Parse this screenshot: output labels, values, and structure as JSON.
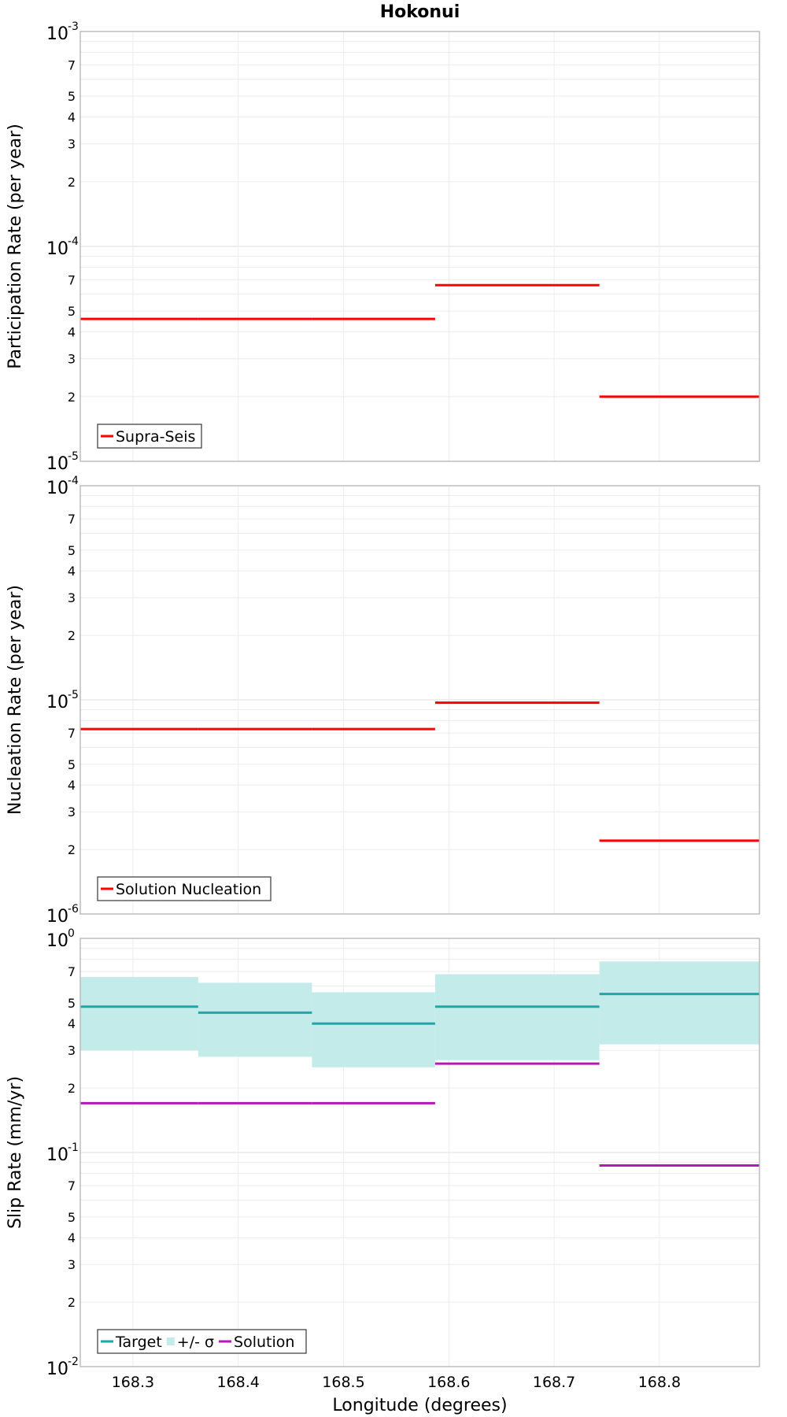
{
  "chart_data": [
    {
      "type": "line",
      "title": "Hokonui",
      "ylabel": "Participation Rate (per year)",
      "xlabel": "",
      "yscale": "log",
      "ylim": [
        1e-05,
        0.001
      ],
      "xlim": [
        168.25,
        168.895
      ],
      "xticks": [],
      "ytick_labels": [
        "10-5",
        "2",
        "3",
        "4",
        "5",
        "7",
        "10-4",
        "2",
        "3",
        "4",
        "5",
        "7",
        "10-3"
      ],
      "grid": true,
      "legend_position": "bottom-left",
      "series": [
        {
          "name": "Supra-Seis",
          "color": "#ff0000",
          "style": "step",
          "segments": [
            {
              "x": [
                168.25,
                168.362
              ],
              "y": 4.6e-05
            },
            {
              "x": [
                168.362,
                168.47
              ],
              "y": 4.6e-05
            },
            {
              "x": [
                168.47,
                168.587
              ],
              "y": 4.6e-05
            },
            {
              "x": [
                168.587,
                168.743
              ],
              "y": 6.6e-05
            },
            {
              "x": [
                168.743,
                168.895
              ],
              "y": 2e-05
            }
          ]
        }
      ]
    },
    {
      "type": "line",
      "title": "",
      "ylabel": "Nucleation Rate (per year)",
      "xlabel": "",
      "yscale": "log",
      "ylim": [
        1e-06,
        0.0001
      ],
      "xlim": [
        168.25,
        168.895
      ],
      "xticks": [],
      "ytick_labels": [
        "10-6",
        "2",
        "3",
        "4",
        "5",
        "7",
        "10-5",
        "2",
        "3",
        "4",
        "5",
        "7",
        "10-4"
      ],
      "grid": true,
      "legend_position": "bottom-left",
      "series": [
        {
          "name": "Solution Nucleation",
          "color": "#ff0000",
          "style": "step",
          "segments": [
            {
              "x": [
                168.25,
                168.362
              ],
              "y": 7.3e-06
            },
            {
              "x": [
                168.362,
                168.47
              ],
              "y": 7.3e-06
            },
            {
              "x": [
                168.47,
                168.587
              ],
              "y": 7.3e-06
            },
            {
              "x": [
                168.587,
                168.743
              ],
              "y": 9.7e-06
            },
            {
              "x": [
                168.743,
                168.895
              ],
              "y": 2.2e-06
            }
          ]
        }
      ]
    },
    {
      "type": "line",
      "title": "",
      "ylabel": "Slip Rate (mm/yr)",
      "xlabel": "Longitude (degrees)",
      "yscale": "log",
      "ylim": [
        0.01,
        1
      ],
      "xlim": [
        168.25,
        168.895
      ],
      "xticks": [
        "168.3",
        "168.4",
        "168.5",
        "168.6",
        "168.7",
        "168.8"
      ],
      "ytick_labels": [
        "10-2",
        "2",
        "3",
        "4",
        "5",
        "7",
        "10-1",
        "2",
        "3",
        "4",
        "5",
        "7",
        "100"
      ],
      "grid": true,
      "legend_position": "bottom-left",
      "series": [
        {
          "name": "Target",
          "color": "#1aa9a9",
          "style": "step",
          "segments": [
            {
              "x": [
                168.25,
                168.362
              ],
              "y": 0.48
            },
            {
              "x": [
                168.362,
                168.47
              ],
              "y": 0.45
            },
            {
              "x": [
                168.47,
                168.587
              ],
              "y": 0.4
            },
            {
              "x": [
                168.587,
                168.743
              ],
              "y": 0.48
            },
            {
              "x": [
                168.743,
                168.895
              ],
              "y": 0.55
            }
          ]
        },
        {
          "name": "+/- σ",
          "color": "#c2ebea",
          "style": "band",
          "segments": [
            {
              "x": [
                168.25,
                168.362
              ],
              "low": 0.3,
              "high": 0.66
            },
            {
              "x": [
                168.362,
                168.47
              ],
              "low": 0.28,
              "high": 0.62
            },
            {
              "x": [
                168.47,
                168.587
              ],
              "low": 0.25,
              "high": 0.56
            },
            {
              "x": [
                168.587,
                168.743
              ],
              "low": 0.27,
              "high": 0.68
            },
            {
              "x": [
                168.743,
                168.895
              ],
              "low": 0.32,
              "high": 0.78
            }
          ]
        },
        {
          "name": "Solution",
          "color": "#b31ab3",
          "style": "step",
          "segments": [
            {
              "x": [
                168.25,
                168.362
              ],
              "y": 0.17
            },
            {
              "x": [
                168.362,
                168.47
              ],
              "y": 0.17
            },
            {
              "x": [
                168.47,
                168.587
              ],
              "y": 0.17
            },
            {
              "x": [
                168.587,
                168.743
              ],
              "y": 0.26
            },
            {
              "x": [
                168.743,
                168.895
              ],
              "y": 0.087
            }
          ]
        }
      ]
    }
  ]
}
